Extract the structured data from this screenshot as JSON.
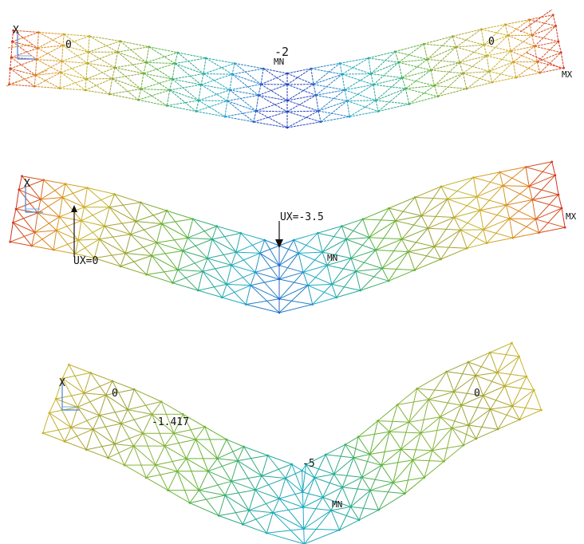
{
  "colors": {
    "red": "#d2321e",
    "orange": "#dc8c1e",
    "yellow": "#c8b428",
    "olive": "#a0a032",
    "green": "#64b432",
    "teal": "#28aa8c",
    "cyan": "#1eaac8",
    "blue": "#2850c8",
    "navy": "#1e32aa",
    "arrow": "#111111"
  },
  "panels": [
    {
      "id": "panel-top",
      "labels": {
        "axis": "X",
        "left_zero": "0",
        "center_value": "-2",
        "min_marker": "MN",
        "right_zero": "0",
        "max_marker": "MX"
      }
    },
    {
      "id": "panel-middle",
      "labels": {
        "axis": "X",
        "support": "UX=0",
        "load": "UX=-3.5",
        "min_marker": "MN",
        "max_marker": "MX"
      }
    },
    {
      "id": "panel-bottom",
      "labels": {
        "axis": "X",
        "left_zero": "0",
        "mid_value": "-1.417",
        "center_value": "-5",
        "min_marker": "MN",
        "right_zero": "0"
      }
    }
  ]
}
